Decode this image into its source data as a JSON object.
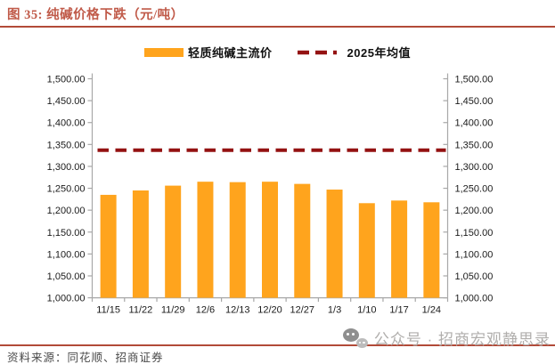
{
  "header": {
    "title": "图 35:  纯碱价格下跌（元/吨）"
  },
  "legend": {
    "items": [
      {
        "label": "轻质纯碱主流价",
        "type": "bar-swatch",
        "color": "#FFA41D"
      },
      {
        "label": "2025年均值",
        "type": "dash-swatch",
        "color": "#941212"
      }
    ]
  },
  "chart_data": {
    "type": "bar",
    "title": "纯碱价格下跌（元/吨）",
    "categories": [
      "11/15",
      "11/22",
      "11/29",
      "12/6",
      "12/13",
      "12/20",
      "12/27",
      "1/3",
      "1/10",
      "1/17",
      "1/24"
    ],
    "series": [
      {
        "name": "轻质纯碱主流价",
        "type": "bar",
        "color": "#FFA41D",
        "values": [
          1235,
          1245,
          1256,
          1265,
          1264,
          1265,
          1260,
          1247,
          1216,
          1222,
          1218
        ]
      },
      {
        "name": "2025年均值",
        "type": "dashed-hline",
        "color": "#941212",
        "value": 1337
      }
    ],
    "ylim": [
      1000,
      1500
    ],
    "ytick_step": 50,
    "ytick_labels": [
      "1,500.00",
      "1,450.00",
      "1,400.00",
      "1,350.00",
      "1,300.00",
      "1,250.00",
      "1,200.00",
      "1,150.00",
      "1,100.00",
      "1,050.00",
      "1,000.00"
    ],
    "y_axis_sides": "both",
    "grid": false,
    "legend_position": "top"
  },
  "footer": {
    "source": "资料来源：同花顺、招商证券"
  },
  "watermark": {
    "icon": "wechat-icon",
    "text": "公众号 · 招商宏观静思录"
  },
  "colors": {
    "accent_title": "#C05A49",
    "rule": "#B24A38",
    "bar": "#FFA41D",
    "mean_line": "#941212",
    "axis": "#A8A8A8",
    "watermark": "#B0AEAC"
  }
}
